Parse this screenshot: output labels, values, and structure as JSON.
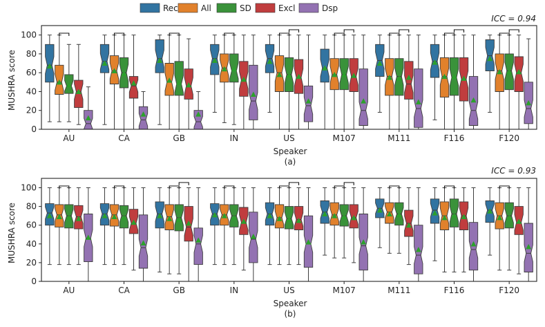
{
  "legend": [
    {
      "label": "Rec",
      "color": "#3274a1"
    },
    {
      "label": "All",
      "color": "#e1812c"
    },
    {
      "label": "SD",
      "color": "#3a923a"
    },
    {
      "label": "Excl",
      "color": "#c03d3e"
    },
    {
      "label": "Dsp",
      "color": "#9372b2"
    }
  ],
  "chart_data": [
    {
      "type": "boxplot",
      "panel_label": "(a)",
      "icc_label": "ICC = 0.94",
      "xlabel": "Speaker",
      "ylabel": "MUSHRA score",
      "ylim": [
        0,
        110
      ],
      "yticks": [
        0,
        20,
        40,
        60,
        80,
        100
      ],
      "categories": [
        "AU",
        "CA",
        "GB",
        "IN",
        "US",
        "M107",
        "M111",
        "F116",
        "F120"
      ],
      "series_names": [
        "Rec",
        "All",
        "SD",
        "Excl",
        "Dsp"
      ],
      "boxes": [
        [
          {
            "q1": 50,
            "med": 68,
            "q3": 90,
            "wlo": 8,
            "whi": 100,
            "mean": 67
          },
          {
            "q1": 37,
            "med": 50,
            "q3": 68,
            "wlo": 8,
            "whi": 100,
            "mean": 50
          },
          {
            "q1": 38,
            "med": 46,
            "q3": 58,
            "wlo": 8,
            "whi": 90,
            "mean": 47
          },
          {
            "q1": 23,
            "med": 40,
            "q3": 52,
            "wlo": 5,
            "whi": 90,
            "mean": 40
          },
          {
            "q1": 0,
            "med": 6,
            "q3": 20,
            "wlo": 0,
            "whi": 45,
            "mean": 12
          }
        ],
        [
          {
            "q1": 60,
            "med": 72,
            "q3": 90,
            "wlo": 5,
            "whi": 100,
            "mean": 70
          },
          {
            "q1": 48,
            "med": 62,
            "q3": 78,
            "wlo": 0,
            "whi": 100,
            "mean": 62
          },
          {
            "q1": 44,
            "med": 60,
            "q3": 76,
            "wlo": 0,
            "whi": 100,
            "mean": 59
          },
          {
            "q1": 33,
            "med": 46,
            "q3": 56,
            "wlo": 0,
            "whi": 100,
            "mean": 49
          },
          {
            "q1": 0,
            "med": 10,
            "q3": 24,
            "wlo": 0,
            "whi": 40,
            "mean": 16
          }
        ],
        [
          {
            "q1": 60,
            "med": 75,
            "q3": 95,
            "wlo": 5,
            "whi": 100,
            "mean": 73
          },
          {
            "q1": 36,
            "med": 50,
            "q3": 70,
            "wlo": 0,
            "whi": 100,
            "mean": 52
          },
          {
            "q1": 36,
            "med": 48,
            "q3": 72,
            "wlo": 0,
            "whi": 100,
            "mean": 50
          },
          {
            "q1": 32,
            "med": 46,
            "q3": 64,
            "wlo": 0,
            "whi": 96,
            "mean": 47
          },
          {
            "q1": 0,
            "med": 8,
            "q3": 20,
            "wlo": 0,
            "whi": 40,
            "mean": 16
          }
        ],
        [
          {
            "q1": 58,
            "med": 75,
            "q3": 90,
            "wlo": 18,
            "whi": 100,
            "mean": 73
          },
          {
            "q1": 50,
            "med": 65,
            "q3": 80,
            "wlo": 7,
            "whi": 100,
            "mean": 64
          },
          {
            "q1": 50,
            "med": 62,
            "q3": 80,
            "wlo": 5,
            "whi": 100,
            "mean": 64
          },
          {
            "q1": 35,
            "med": 52,
            "q3": 72,
            "wlo": 0,
            "whi": 100,
            "mean": 53
          },
          {
            "q1": 10,
            "med": 30,
            "q3": 68,
            "wlo": 0,
            "whi": 100,
            "mean": 37
          }
        ],
        [
          {
            "q1": 60,
            "med": 75,
            "q3": 90,
            "wlo": 18,
            "whi": 100,
            "mean": 72
          },
          {
            "q1": 40,
            "med": 60,
            "q3": 78,
            "wlo": 0,
            "whi": 100,
            "mean": 58
          },
          {
            "q1": 40,
            "med": 58,
            "q3": 76,
            "wlo": 0,
            "whi": 100,
            "mean": 57
          },
          {
            "q1": 38,
            "med": 55,
            "q3": 74,
            "wlo": 0,
            "whi": 100,
            "mean": 56
          },
          {
            "q1": 8,
            "med": 25,
            "q3": 46,
            "wlo": 0,
            "whi": 100,
            "mean": 30
          }
        ],
        [
          {
            "q1": 50,
            "med": 65,
            "q3": 85,
            "wlo": 0,
            "whi": 100,
            "mean": 65
          },
          {
            "q1": 42,
            "med": 58,
            "q3": 75,
            "wlo": 0,
            "whi": 100,
            "mean": 58
          },
          {
            "q1": 42,
            "med": 58,
            "q3": 75,
            "wlo": 0,
            "whi": 100,
            "mean": 58
          },
          {
            "q1": 40,
            "med": 56,
            "q3": 75,
            "wlo": 0,
            "whi": 100,
            "mean": 57
          },
          {
            "q1": 4,
            "med": 20,
            "q3": 64,
            "wlo": 0,
            "whi": 100,
            "mean": 30
          }
        ],
        [
          {
            "q1": 56,
            "med": 73,
            "q3": 90,
            "wlo": 18,
            "whi": 100,
            "mean": 70
          },
          {
            "q1": 36,
            "med": 56,
            "q3": 75,
            "wlo": 0,
            "whi": 100,
            "mean": 55
          },
          {
            "q1": 36,
            "med": 56,
            "q3": 75,
            "wlo": 0,
            "whi": 100,
            "mean": 54
          },
          {
            "q1": 32,
            "med": 48,
            "q3": 72,
            "wlo": 0,
            "whi": 100,
            "mean": 55
          },
          {
            "q1": 2,
            "med": 22,
            "q3": 64,
            "wlo": 0,
            "whi": 100,
            "mean": 29
          }
        ],
        [
          {
            "q1": 55,
            "med": 72,
            "q3": 90,
            "wlo": 10,
            "whi": 100,
            "mean": 71
          },
          {
            "q1": 34,
            "med": 56,
            "q3": 76,
            "wlo": 0,
            "whi": 100,
            "mean": 56
          },
          {
            "q1": 36,
            "med": 55,
            "q3": 76,
            "wlo": 0,
            "whi": 100,
            "mean": 56
          },
          {
            "q1": 30,
            "med": 53,
            "q3": 76,
            "wlo": 0,
            "whi": 100,
            "mean": 54
          },
          {
            "q1": 4,
            "med": 20,
            "q3": 56,
            "wlo": 0,
            "whi": 100,
            "mean": 31
          }
        ],
        [
          {
            "q1": 62,
            "med": 78,
            "q3": 95,
            "wlo": 18,
            "whi": 100,
            "mean": 75
          },
          {
            "q1": 40,
            "med": 62,
            "q3": 80,
            "wlo": 0,
            "whi": 100,
            "mean": 61
          },
          {
            "q1": 42,
            "med": 62,
            "q3": 80,
            "wlo": 0,
            "whi": 100,
            "mean": 61
          },
          {
            "q1": 40,
            "med": 60,
            "q3": 77,
            "wlo": 0,
            "whi": 100,
            "mean": 61
          },
          {
            "q1": 6,
            "med": 22,
            "q3": 50,
            "wlo": 0,
            "whi": 96,
            "mean": 28
          }
        ]
      ],
      "brackets": [
        [
          [
            1,
            2
          ]
        ],
        [
          [
            1,
            2
          ]
        ],
        [
          [
            1,
            2
          ]
        ],
        [
          [
            1,
            2
          ]
        ],
        [
          [
            1,
            2
          ],
          [
            2,
            3
          ]
        ],
        [
          [
            1,
            2
          ],
          [
            2,
            3
          ]
        ],
        [
          [
            1,
            2
          ],
          [
            2,
            3
          ]
        ],
        [
          [
            1,
            2
          ],
          [
            2,
            3
          ]
        ],
        [
          [
            1,
            2
          ],
          [
            2,
            3
          ]
        ]
      ]
    },
    {
      "type": "boxplot",
      "panel_label": "(b)",
      "icc_label": "ICC = 0.93",
      "xlabel": "Speaker",
      "ylabel": "MUSHRA score",
      "ylim": [
        0,
        110
      ],
      "yticks": [
        0,
        20,
        40,
        60,
        80,
        100
      ],
      "categories": [
        "AU",
        "CA",
        "GB",
        "IN",
        "US",
        "M107",
        "M111",
        "F116",
        "F120"
      ],
      "series_names": [
        "Rec",
        "All",
        "SD",
        "Excl",
        "Dsp"
      ],
      "boxes": [
        [
          {
            "q1": 60,
            "med": 73,
            "q3": 83,
            "wlo": 18,
            "whi": 100,
            "mean": 70
          },
          {
            "q1": 58,
            "med": 71,
            "q3": 82,
            "wlo": 18,
            "whi": 100,
            "mean": 69
          },
          {
            "q1": 57,
            "med": 70,
            "q3": 82,
            "wlo": 18,
            "whi": 100,
            "mean": 68
          },
          {
            "q1": 56,
            "med": 69,
            "q3": 81,
            "wlo": 18,
            "whi": 100,
            "mean": 67
          },
          {
            "q1": 21,
            "med": 46,
            "q3": 72,
            "wlo": 0,
            "whi": 100,
            "mean": 47
          }
        ],
        [
          {
            "q1": 60,
            "med": 72,
            "q3": 83,
            "wlo": 18,
            "whi": 100,
            "mean": 70
          },
          {
            "q1": 59,
            "med": 71,
            "q3": 82,
            "wlo": 18,
            "whi": 100,
            "mean": 69
          },
          {
            "q1": 57,
            "med": 70,
            "q3": 81,
            "wlo": 18,
            "whi": 100,
            "mean": 68
          },
          {
            "q1": 51,
            "med": 62,
            "q3": 77,
            "wlo": 12,
            "whi": 100,
            "mean": 63
          },
          {
            "q1": 14,
            "med": 36,
            "q3": 71,
            "wlo": 0,
            "whi": 100,
            "mean": 41
          }
        ],
        [
          {
            "q1": 57,
            "med": 72,
            "q3": 85,
            "wlo": 10,
            "whi": 100,
            "mean": 70
          },
          {
            "q1": 55,
            "med": 69,
            "q3": 82,
            "wlo": 8,
            "whi": 100,
            "mean": 67
          },
          {
            "q1": 54,
            "med": 68,
            "q3": 82,
            "wlo": 8,
            "whi": 100,
            "mean": 66
          },
          {
            "q1": 43,
            "med": 58,
            "q3": 80,
            "wlo": 0,
            "whi": 100,
            "mean": 62
          },
          {
            "q1": 18,
            "med": 40,
            "q3": 57,
            "wlo": 0,
            "whi": 100,
            "mean": 44
          }
        ],
        [
          {
            "q1": 60,
            "med": 72,
            "q3": 83,
            "wlo": 18,
            "whi": 100,
            "mean": 71
          },
          {
            "q1": 60,
            "med": 71,
            "q3": 82,
            "wlo": 18,
            "whi": 100,
            "mean": 70
          },
          {
            "q1": 58,
            "med": 70,
            "q3": 82,
            "wlo": 18,
            "whi": 100,
            "mean": 68
          },
          {
            "q1": 50,
            "med": 63,
            "q3": 79,
            "wlo": 12,
            "whi": 100,
            "mean": 64
          },
          {
            "q1": 20,
            "med": 45,
            "q3": 74,
            "wlo": 0,
            "whi": 100,
            "mean": 48
          }
        ],
        [
          {
            "q1": 60,
            "med": 72,
            "q3": 84,
            "wlo": 18,
            "whi": 100,
            "mean": 70
          },
          {
            "q1": 57,
            "med": 68,
            "q3": 82,
            "wlo": 18,
            "whi": 100,
            "mean": 67
          },
          {
            "q1": 56,
            "med": 67,
            "q3": 80,
            "wlo": 18,
            "whi": 100,
            "mean": 66
          },
          {
            "q1": 55,
            "med": 66,
            "q3": 80,
            "wlo": 18,
            "whi": 100,
            "mean": 65
          },
          {
            "q1": 15,
            "med": 40,
            "q3": 70,
            "wlo": 0,
            "whi": 100,
            "mean": 42
          }
        ],
        [
          {
            "q1": 62,
            "med": 74,
            "q3": 86,
            "wlo": 28,
            "whi": 100,
            "mean": 72
          },
          {
            "q1": 60,
            "med": 71,
            "q3": 84,
            "wlo": 25,
            "whi": 100,
            "mean": 70
          },
          {
            "q1": 59,
            "med": 70,
            "q3": 82,
            "wlo": 25,
            "whi": 100,
            "mean": 69
          },
          {
            "q1": 57,
            "med": 68,
            "q3": 82,
            "wlo": 20,
            "whi": 100,
            "mean": 68
          },
          {
            "q1": 12,
            "med": 38,
            "q3": 72,
            "wlo": 0,
            "whi": 100,
            "mean": 42
          }
        ],
        [
          {
            "q1": 68,
            "med": 78,
            "q3": 88,
            "wlo": 36,
            "whi": 100,
            "mean": 76
          },
          {
            "q1": 62,
            "med": 74,
            "q3": 84,
            "wlo": 30,
            "whi": 100,
            "mean": 72
          },
          {
            "q1": 60,
            "med": 72,
            "q3": 84,
            "wlo": 30,
            "whi": 100,
            "mean": 71
          },
          {
            "q1": 48,
            "med": 62,
            "q3": 76,
            "wlo": 18,
            "whi": 100,
            "mean": 60
          },
          {
            "q1": 8,
            "med": 28,
            "q3": 60,
            "wlo": 0,
            "whi": 100,
            "mean": 34
          }
        ],
        [
          {
            "q1": 62,
            "med": 76,
            "q3": 88,
            "wlo": 22,
            "whi": 100,
            "mean": 73
          },
          {
            "q1": 55,
            "med": 70,
            "q3": 85,
            "wlo": 10,
            "whi": 100,
            "mean": 68
          },
          {
            "q1": 58,
            "med": 72,
            "q3": 88,
            "wlo": 10,
            "whi": 100,
            "mean": 70
          },
          {
            "q1": 55,
            "med": 70,
            "q3": 85,
            "wlo": 10,
            "whi": 100,
            "mean": 69
          },
          {
            "q1": 12,
            "med": 34,
            "q3": 63,
            "wlo": 0,
            "whi": 100,
            "mean": 40
          }
        ],
        [
          {
            "q1": 63,
            "med": 76,
            "q3": 86,
            "wlo": 28,
            "whi": 100,
            "mean": 75
          },
          {
            "q1": 56,
            "med": 70,
            "q3": 84,
            "wlo": 12,
            "whi": 100,
            "mean": 68
          },
          {
            "q1": 57,
            "med": 70,
            "q3": 84,
            "wlo": 12,
            "whi": 100,
            "mean": 68
          },
          {
            "q1": 50,
            "med": 63,
            "q3": 80,
            "wlo": 8,
            "whi": 100,
            "mean": 64
          },
          {
            "q1": 10,
            "med": 30,
            "q3": 62,
            "wlo": 0,
            "whi": 100,
            "mean": 37
          }
        ]
      ],
      "brackets": [
        [
          [
            1,
            2
          ]
        ],
        [
          [
            1,
            2
          ]
        ],
        [
          [
            1,
            2
          ],
          [
            2,
            3
          ]
        ],
        [
          [
            1,
            2
          ]
        ],
        [
          [
            1,
            2
          ],
          [
            2,
            3
          ]
        ],
        [
          [
            1,
            2
          ],
          [
            2,
            3
          ]
        ],
        [
          [
            1,
            2
          ]
        ],
        [
          [
            1,
            2
          ]
        ],
        [
          [
            1,
            2
          ]
        ]
      ]
    }
  ]
}
